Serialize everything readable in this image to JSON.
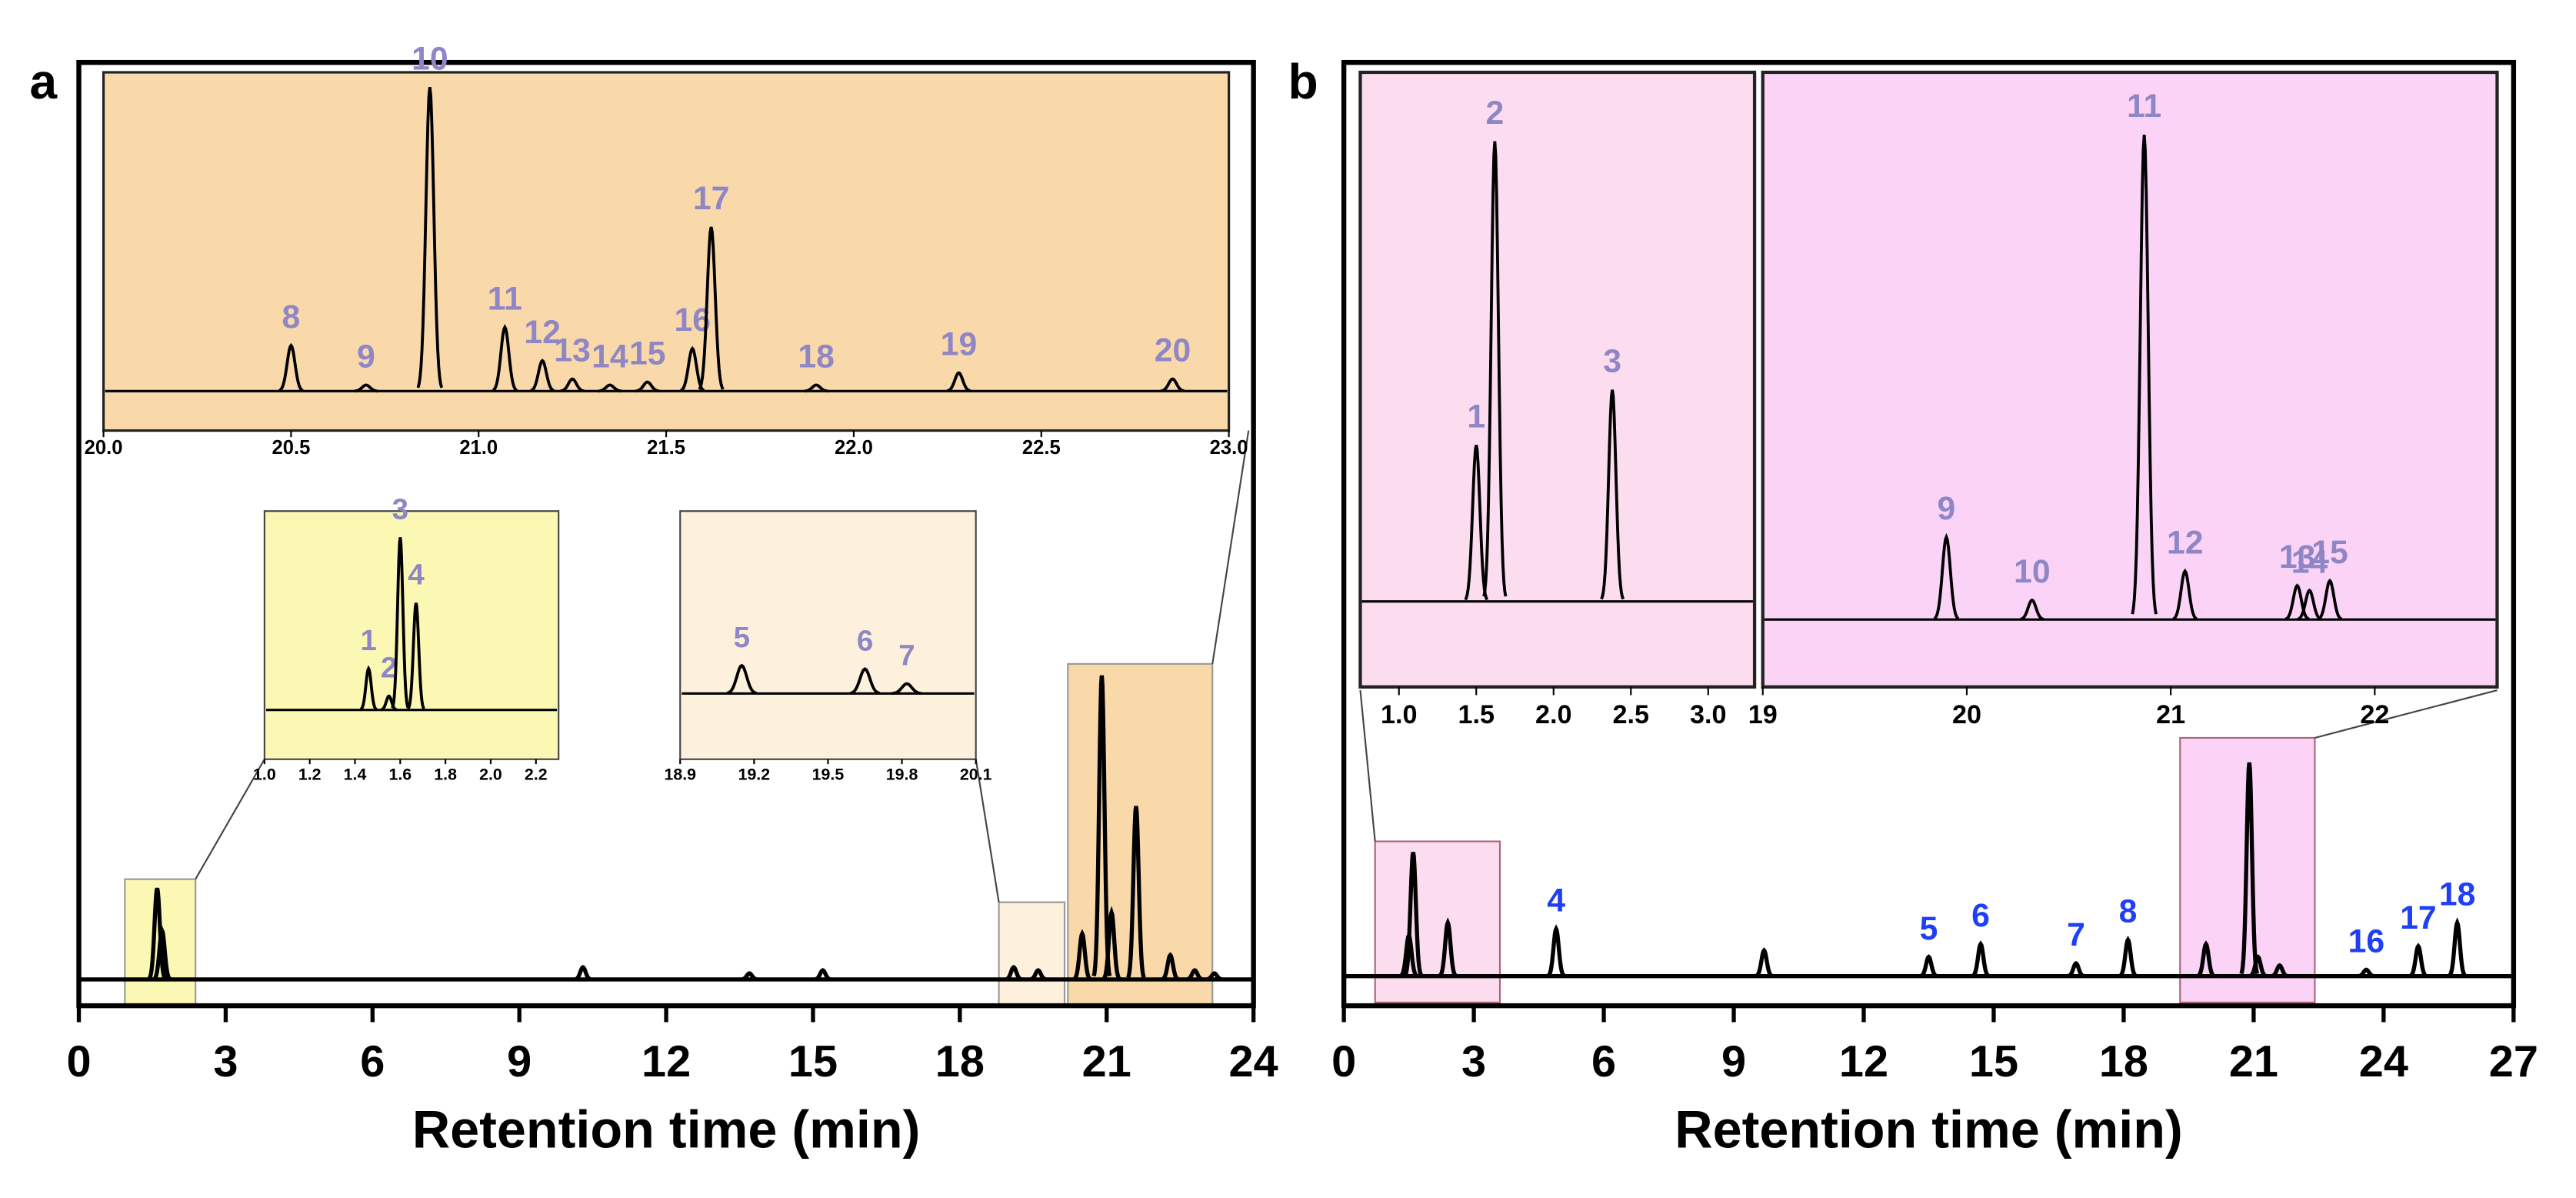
{
  "chart_data": [
    {
      "type": "line",
      "panel": "a",
      "xlabel": "Retention time (min)",
      "color": "#000000",
      "label_color": "#1f3ff5",
      "xlim": [
        0,
        24
      ],
      "xticks": [
        0,
        3,
        6,
        9,
        12,
        15,
        18,
        21,
        24
      ],
      "peaks": [
        {
          "x": 1.6,
          "height": 30
        },
        {
          "x": 1.7,
          "height": 16
        },
        {
          "x": 10.3,
          "height": 4
        },
        {
          "x": 13.7,
          "height": 2
        },
        {
          "x": 15.2,
          "height": 3
        },
        {
          "x": 19.1,
          "height": 4
        },
        {
          "x": 19.6,
          "height": 3
        },
        {
          "x": 20.5,
          "height": 15
        },
        {
          "x": 20.9,
          "height": 100
        },
        {
          "x": 21.1,
          "height": 22
        },
        {
          "x": 21.6,
          "height": 57
        },
        {
          "x": 22.3,
          "height": 8
        },
        {
          "x": 22.8,
          "height": 3
        },
        {
          "x": 23.2,
          "height": 2
        }
      ]
    },
    {
      "type": "line",
      "color": "#000000",
      "label_color": "#8f86c6",
      "xlim": [
        20,
        23
      ],
      "xticks": [
        {
          "value": 20,
          "label": "20.0"
        },
        20.5,
        {
          "value": 21,
          "label": "21.0"
        },
        21.5,
        {
          "value": 22,
          "label": "22.0"
        },
        22.5,
        {
          "value": 23,
          "label": "23.0"
        }
      ],
      "peaks": [
        {
          "label": "8",
          "x": 20.5,
          "height": 15
        },
        {
          "label": "9",
          "x": 20.7,
          "height": 2
        },
        {
          "label": "10",
          "x": 20.87,
          "height": 100
        },
        {
          "label": "11",
          "x": 21.07,
          "height": 21
        },
        {
          "label": "12",
          "x": 21.17,
          "height": 10
        },
        {
          "label": "13",
          "x": 21.25,
          "height": 4
        },
        {
          "label": "14",
          "x": 21.35,
          "height": 2
        },
        {
          "label": "15",
          "x": 21.45,
          "height": 3
        },
        {
          "label": "16",
          "x": 21.57,
          "height": 14
        },
        {
          "label": "17",
          "x": 21.62,
          "height": 54
        },
        {
          "label": "18",
          "x": 21.9,
          "height": 2
        },
        {
          "label": "19",
          "x": 22.28,
          "height": 6
        },
        {
          "label": "20",
          "x": 22.85,
          "height": 4
        }
      ]
    },
    {
      "type": "line",
      "color": "#000000",
      "label_color": "#8f86c6",
      "xlim": [
        1.0,
        2.3
      ],
      "xticks": [
        {
          "value": 1.0,
          "label": "1.0"
        },
        1.2,
        1.4,
        1.6,
        1.8,
        {
          "value": 2.0,
          "label": "2.0"
        },
        2.2
      ],
      "peaks": [
        {
          "label": "1",
          "x": 1.46,
          "height": 24
        },
        {
          "label": "2",
          "x": 1.55,
          "height": 8
        },
        {
          "label": "3",
          "x": 1.6,
          "height": 100
        },
        {
          "label": "4",
          "x": 1.67,
          "height": 62
        }
      ]
    },
    {
      "type": "line",
      "color": "#000000",
      "label_color": "#8f86c6",
      "xlim": [
        18.9,
        20.1
      ],
      "xticks": [
        18.9,
        19.2,
        19.5,
        19.8,
        20.1
      ],
      "peaks": [
        {
          "label": "5",
          "x": 19.15,
          "height": 100
        },
        {
          "label": "6",
          "x": 19.65,
          "height": 88
        },
        {
          "label": "7",
          "x": 19.82,
          "height": 35
        }
      ]
    },
    {
      "type": "line",
      "panel": "b",
      "xlabel": "Retention time (min)",
      "color": "#000000",
      "label_color": "#1f3ff5",
      "xlim": [
        0,
        27
      ],
      "xticks": [
        0,
        3,
        6,
        9,
        12,
        15,
        18,
        21,
        24,
        27
      ],
      "peaks": [
        {
          "x": 1.5,
          "height": 19
        },
        {
          "x": 1.6,
          "height": 58
        },
        {
          "x": 2.4,
          "height": 25
        },
        {
          "label": "4",
          "x": 4.9,
          "height": 22
        },
        {
          "x": 9.7,
          "height": 12
        },
        {
          "label": "5",
          "x": 13.5,
          "height": 9
        },
        {
          "label": "6",
          "x": 14.7,
          "height": 15
        },
        {
          "label": "7",
          "x": 16.9,
          "height": 6
        },
        {
          "label": "8",
          "x": 18.1,
          "height": 17
        },
        {
          "x": 19.9,
          "height": 15
        },
        {
          "x": 20.9,
          "height": 100
        },
        {
          "x": 21.1,
          "height": 9
        },
        {
          "x": 21.6,
          "height": 5
        },
        {
          "label": "16",
          "x": 23.6,
          "height": 3
        },
        {
          "label": "17",
          "x": 24.8,
          "height": 14
        },
        {
          "label": "18",
          "x": 25.7,
          "height": 25
        }
      ]
    },
    {
      "type": "line",
      "color": "#000000",
      "label_color": "#8f86c6",
      "xlim": [
        0.75,
        3.3
      ],
      "xticks": [
        {
          "value": 1.0,
          "label": "1.0"
        },
        1.5,
        {
          "value": 2.0,
          "label": "2.0"
        },
        2.5,
        {
          "value": 3.0,
          "label": "3.0"
        }
      ],
      "peaks": [
        {
          "label": "1",
          "x": 1.5,
          "height": 34
        },
        {
          "label": "2",
          "x": 1.62,
          "height": 100
        },
        {
          "label": "3",
          "x": 2.38,
          "height": 46
        }
      ]
    },
    {
      "type": "line",
      "color": "#000000",
      "label_color": "#8f86c6",
      "xlim": [
        19,
        22.6
      ],
      "xticks": [
        19,
        20,
        21,
        22
      ],
      "peaks": [
        {
          "label": "9",
          "x": 19.9,
          "height": 17
        },
        {
          "label": "10",
          "x": 20.32,
          "height": 4
        },
        {
          "label": "11",
          "x": 20.87,
          "height": 100
        },
        {
          "label": "12",
          "x": 21.07,
          "height": 10
        },
        {
          "label": "13",
          "x": 21.62,
          "height": 7
        },
        {
          "label": "14",
          "x": 21.68,
          "height": 6
        },
        {
          "label": "15",
          "x": 21.78,
          "height": 8
        }
      ]
    }
  ]
}
